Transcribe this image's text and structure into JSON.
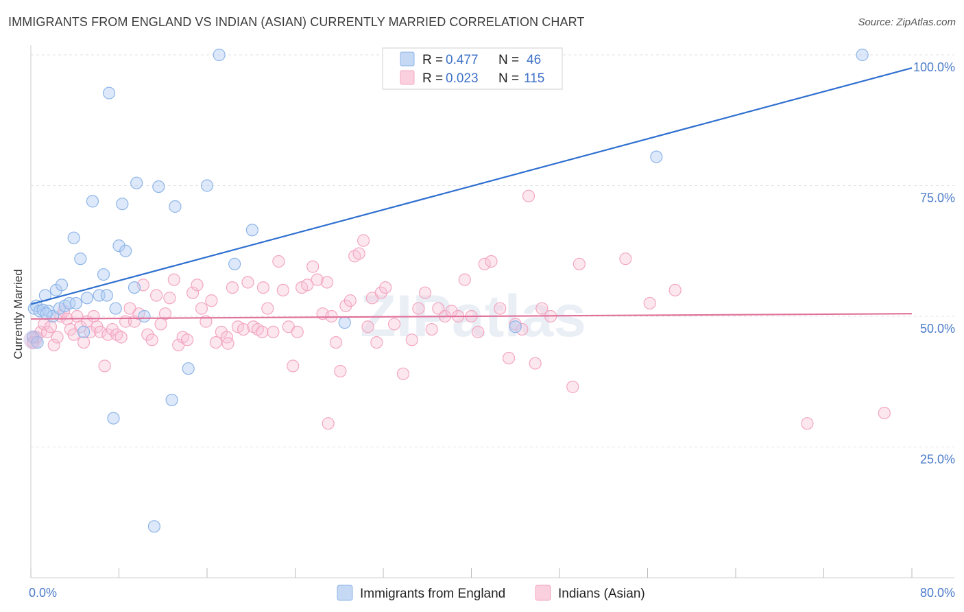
{
  "title": "IMMIGRANTS FROM ENGLAND VS INDIAN (ASIAN) CURRENTLY MARRIED CORRELATION CHART",
  "source": "Source: ZipAtlas.com",
  "watermark": "ZIPatlas",
  "chart_data": {
    "type": "scatter",
    "ylabel": "Currently Married",
    "xlim": [
      0,
      80
    ],
    "ylim": [
      0,
      105
    ],
    "x_tick_labels": [
      "0.0%",
      "80.0%"
    ],
    "y_ticks": [
      25,
      50,
      75,
      100
    ],
    "y_tick_labels": [
      "25.0%",
      "50.0%",
      "75.0%",
      "100.0%"
    ],
    "grid": true,
    "legend_position": "top-center",
    "series": [
      {
        "name": "Immigrants from England",
        "color": "#8db4e8",
        "line_color": "#2e6fcf",
        "R": "0.477",
        "N": "46",
        "trend": [
          [
            0,
            52.3
          ],
          [
            80,
            97.5
          ]
        ],
        "points": [
          [
            0.3,
            51.5
          ],
          [
            0.5,
            52.0
          ],
          [
            0.8,
            51.0
          ],
          [
            1.1,
            51.2
          ],
          [
            1.3,
            54.0
          ],
          [
            1.6,
            51.0
          ],
          [
            2.0,
            50.0
          ],
          [
            2.3,
            55.0
          ],
          [
            2.6,
            51.5
          ],
          [
            2.8,
            56.0
          ],
          [
            3.1,
            52.0
          ],
          [
            3.5,
            52.5
          ],
          [
            3.9,
            65.0
          ],
          [
            4.1,
            52.5
          ],
          [
            4.5,
            61.0
          ],
          [
            4.8,
            47.0
          ],
          [
            5.1,
            53.5
          ],
          [
            5.6,
            72.0
          ],
          [
            6.2,
            54.0
          ],
          [
            6.6,
            58.0
          ],
          [
            6.9,
            54.0
          ],
          [
            7.1,
            92.7
          ],
          [
            7.5,
            30.5
          ],
          [
            7.7,
            51.5
          ],
          [
            8.0,
            63.5
          ],
          [
            8.3,
            71.5
          ],
          [
            8.6,
            62.5
          ],
          [
            9.4,
            55.5
          ],
          [
            9.6,
            75.5
          ],
          [
            10.3,
            50.0
          ],
          [
            11.2,
            9.8
          ],
          [
            11.6,
            74.8
          ],
          [
            12.8,
            34.0
          ],
          [
            13.1,
            71.0
          ],
          [
            14.3,
            40.0
          ],
          [
            16.0,
            75.0
          ],
          [
            17.1,
            100.0
          ],
          [
            18.5,
            60.0
          ],
          [
            20.1,
            66.5
          ],
          [
            28.5,
            48.8
          ],
          [
            44.0,
            48.0
          ],
          [
            56.8,
            80.5
          ],
          [
            75.5,
            100.0
          ],
          [
            0.2,
            46.0
          ],
          [
            0.6,
            45.0
          ],
          [
            1.4,
            50.5
          ]
        ]
      },
      {
        "name": "Indians (Asian)",
        "color": "#f3a6c0",
        "line_color": "#e07099",
        "R": "0.023",
        "N": "115",
        "trend": [
          [
            0,
            49.5
          ],
          [
            80,
            50.5
          ]
        ],
        "points": [
          [
            0.2,
            45.0
          ],
          [
            0.5,
            46.0
          ],
          [
            0.9,
            47.0
          ],
          [
            1.2,
            48.5
          ],
          [
            1.5,
            47.0
          ],
          [
            1.8,
            48.0
          ],
          [
            2.1,
            44.5
          ],
          [
            2.4,
            46.0
          ],
          [
            2.7,
            50.0
          ],
          [
            3.0,
            51.0
          ],
          [
            3.3,
            49.5
          ],
          [
            3.6,
            47.5
          ],
          [
            3.9,
            46.5
          ],
          [
            4.2,
            50.0
          ],
          [
            4.5,
            48.0
          ],
          [
            4.8,
            45.0
          ],
          [
            5.1,
            49.0
          ],
          [
            5.4,
            47.0
          ],
          [
            5.7,
            50.0
          ],
          [
            6.0,
            48.0
          ],
          [
            6.3,
            47.0
          ],
          [
            6.7,
            40.5
          ],
          [
            7.0,
            46.5
          ],
          [
            7.4,
            47.5
          ],
          [
            7.8,
            46.5
          ],
          [
            8.2,
            46.0
          ],
          [
            8.6,
            49.0
          ],
          [
            9.0,
            51.5
          ],
          [
            9.4,
            49.0
          ],
          [
            9.8,
            50.5
          ],
          [
            10.2,
            56.0
          ],
          [
            10.6,
            46.5
          ],
          [
            11.0,
            45.5
          ],
          [
            11.4,
            54.0
          ],
          [
            11.8,
            48.5
          ],
          [
            12.2,
            50.5
          ],
          [
            12.6,
            53.5
          ],
          [
            13.0,
            57.0
          ],
          [
            13.4,
            44.5
          ],
          [
            13.8,
            46.0
          ],
          [
            14.2,
            45.5
          ],
          [
            14.7,
            54.5
          ],
          [
            15.1,
            56.0
          ],
          [
            15.5,
            51.5
          ],
          [
            15.9,
            49.0
          ],
          [
            16.4,
            53.0
          ],
          [
            16.8,
            45.0
          ],
          [
            17.3,
            47.0
          ],
          [
            17.8,
            46.0
          ],
          [
            18.3,
            55.5
          ],
          [
            18.8,
            48.0
          ],
          [
            19.3,
            47.5
          ],
          [
            19.7,
            56.5
          ],
          [
            20.2,
            48.0
          ],
          [
            20.6,
            47.5
          ],
          [
            21.1,
            55.5
          ],
          [
            21.5,
            51.5
          ],
          [
            22.0,
            47.0
          ],
          [
            22.5,
            60.5
          ],
          [
            22.9,
            55.0
          ],
          [
            23.4,
            48.0
          ],
          [
            23.8,
            40.5
          ],
          [
            24.2,
            47.0
          ],
          [
            24.6,
            55.5
          ],
          [
            25.1,
            56.0
          ],
          [
            25.6,
            59.5
          ],
          [
            26.0,
            57.0
          ],
          [
            26.5,
            50.5
          ],
          [
            26.9,
            56.5
          ],
          [
            27.3,
            50.0
          ],
          [
            27.7,
            45.0
          ],
          [
            28.1,
            39.5
          ],
          [
            28.6,
            52.0
          ],
          [
            29.0,
            53.0
          ],
          [
            29.4,
            61.5
          ],
          [
            29.8,
            62.0
          ],
          [
            30.2,
            64.5
          ],
          [
            30.6,
            48.0
          ],
          [
            31.0,
            53.5
          ],
          [
            31.4,
            45.0
          ],
          [
            31.8,
            54.5
          ],
          [
            32.2,
            55.5
          ],
          [
            33.0,
            48.5
          ],
          [
            33.8,
            39.0
          ],
          [
            34.6,
            45.5
          ],
          [
            35.2,
            51.5
          ],
          [
            35.8,
            54.5
          ],
          [
            36.4,
            47.5
          ],
          [
            37.0,
            51.5
          ],
          [
            37.6,
            50.0
          ],
          [
            38.2,
            51.0
          ],
          [
            38.8,
            50.0
          ],
          [
            39.4,
            57.0
          ],
          [
            40.0,
            50.0
          ],
          [
            40.6,
            47.0
          ],
          [
            41.2,
            60.0
          ],
          [
            41.8,
            60.5
          ],
          [
            42.6,
            51.5
          ],
          [
            43.4,
            42.0
          ],
          [
            44.0,
            48.5
          ],
          [
            44.6,
            47.5
          ],
          [
            45.2,
            73.0
          ],
          [
            45.8,
            41.0
          ],
          [
            46.4,
            51.5
          ],
          [
            47.2,
            50.0
          ],
          [
            49.2,
            36.5
          ],
          [
            49.8,
            60.0
          ],
          [
            54.0,
            61.0
          ],
          [
            56.2,
            52.5
          ],
          [
            58.5,
            55.0
          ],
          [
            70.5,
            29.5
          ],
          [
            77.5,
            31.5
          ],
          [
            17.9,
            44.8
          ],
          [
            21.0,
            47.0
          ],
          [
            27.0,
            29.5
          ]
        ]
      }
    ]
  },
  "legend": {
    "r_label": "R = ",
    "n_label": "N = "
  }
}
